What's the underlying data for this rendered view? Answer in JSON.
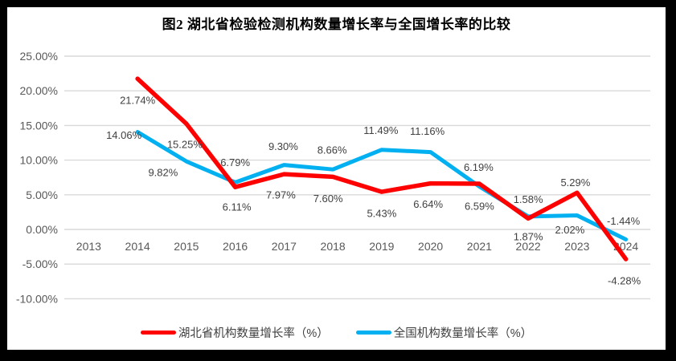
{
  "chart_data": {
    "type": "line",
    "title": "图2 湖北省检验检测机构数量增长率与全国增长率的比较",
    "categories": [
      "2013",
      "2014",
      "2015",
      "2016",
      "2017",
      "2018",
      "2019",
      "2020",
      "2021",
      "2022",
      "2023",
      "2024"
    ],
    "y_axis": {
      "min": -10,
      "max": 25,
      "step": 5,
      "ticks": [
        {
          "value": 25,
          "label": "25.00%"
        },
        {
          "value": 20,
          "label": "20.00%"
        },
        {
          "value": 15,
          "label": "15.00%"
        },
        {
          "value": 10,
          "label": "10.00%"
        },
        {
          "value": 5,
          "label": "5.00%"
        },
        {
          "value": 0,
          "label": "0.00%"
        },
        {
          "value": -5,
          "label": "-5.00%"
        },
        {
          "value": -10,
          "label": "-10.00%"
        }
      ]
    },
    "grid": true,
    "legend_position": "bottom",
    "colors": {
      "background": "#FFFFFF",
      "frame_border": "#000000",
      "gridline": "#D9D9D9",
      "axis_text": "#595959",
      "data_label_text": "#404040",
      "title_text": "#000000"
    },
    "series": [
      {
        "name": "湖北省机构数量增长率（%）",
        "color": "#FF0000",
        "stroke_width": 5.5,
        "points": [
          {
            "category": "2014",
            "value": 21.74,
            "label": "21.74%",
            "label_dx": 0,
            "label_dy": 27
          },
          {
            "category": "2015",
            "value": 15.25,
            "label": "15.25%",
            "label_dx": -2,
            "label_dy": 26
          },
          {
            "category": "2016",
            "value": 6.11,
            "label": "6.11%",
            "label_dx": 2,
            "label_dy": 25
          },
          {
            "category": "2017",
            "value": 7.97,
            "label": "7.97%",
            "label_dx": -4,
            "label_dy": 26
          },
          {
            "category": "2018",
            "value": 7.6,
            "label": "7.60%",
            "label_dx": -6,
            "label_dy": 27
          },
          {
            "category": "2019",
            "value": 5.43,
            "label": "5.43%",
            "label_dx": 0,
            "label_dy": 27
          },
          {
            "category": "2020",
            "value": 6.64,
            "label": "6.64%",
            "label_dx": -3,
            "label_dy": 26
          },
          {
            "category": "2021",
            "value": 6.59,
            "label": "6.59%",
            "label_dx": 0,
            "label_dy": 28
          },
          {
            "category": "2022",
            "value": 1.58,
            "label": "1.58%",
            "label_dx": 0,
            "label_dy": -24
          },
          {
            "category": "2023",
            "value": 5.29,
            "label": "5.29%",
            "label_dx": -2,
            "label_dy": -13
          },
          {
            "category": "2024",
            "value": -4.28,
            "label": "-4.28%",
            "label_dx": -2,
            "label_dy": 27
          }
        ]
      },
      {
        "name": "全国机构数量增长率（%）",
        "color": "#00B0F0",
        "stroke_width": 5,
        "points": [
          {
            "category": "2014",
            "value": 14.06,
            "label": "14.06%",
            "label_dx": -17,
            "label_dy": 4
          },
          {
            "category": "2015",
            "value": 9.82,
            "label": "9.82%",
            "label_dx": -29,
            "label_dy": 14
          },
          {
            "category": "2016",
            "value": 6.79,
            "label": "6.79%",
            "label_dx": 0,
            "label_dy": -25
          },
          {
            "category": "2017",
            "value": 9.3,
            "label": "9.30%",
            "label_dx": -1,
            "label_dy": -23
          },
          {
            "category": "2018",
            "value": 8.66,
            "label": "8.66%",
            "label_dx": -1,
            "label_dy": -24
          },
          {
            "category": "2019",
            "value": 11.49,
            "label": "11.49%",
            "label_dx": -1,
            "label_dy": -24
          },
          {
            "category": "2020",
            "value": 11.16,
            "label": "11.16%",
            "label_dx": -4,
            "label_dy": -26
          },
          {
            "category": "2021",
            "value": 6.19,
            "label": "6.19%",
            "label_dx": -1,
            "label_dy": -24
          },
          {
            "category": "2022",
            "value": 1.87,
            "label": "1.87%",
            "label_dx": 0,
            "label_dy": 25
          },
          {
            "category": "2023",
            "value": 2.02,
            "label": "2.02%",
            "label_dx": -9,
            "label_dy": 18
          },
          {
            "category": "2024",
            "value": -1.44,
            "label": "-1.44%",
            "label_dx": -3,
            "label_dy": -23
          }
        ]
      }
    ]
  }
}
